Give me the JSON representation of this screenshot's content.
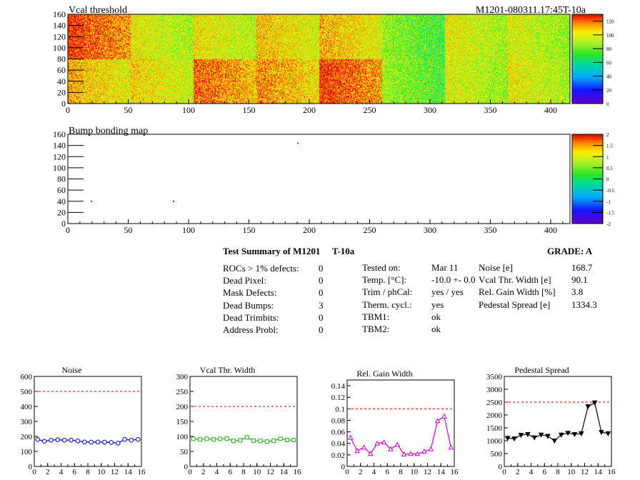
{
  "header": {
    "vcal_title": "Vcal threshold",
    "module_id": "M1201-080311.17:45T-10a",
    "bump_title": "Bump bonding map"
  },
  "summary": {
    "title": "Test Summary of M1201",
    "temp_tag": "T-10a",
    "grade": "GRADE:  A",
    "rows": [
      {
        "label": "ROCs > 1% defects:",
        "value": "0"
      },
      {
        "label": "Dead Pixel:",
        "value": "0"
      },
      {
        "label": "Mask Defects:",
        "value": "0"
      },
      {
        "label": "Dead Bumps:",
        "value": "3"
      },
      {
        "label": "Dead Trimbits:",
        "value": "0"
      },
      {
        "label": "Address Probl:",
        "value": "0"
      }
    ],
    "test_rows": [
      {
        "label": "Tested on:",
        "value": "Mar 11"
      },
      {
        "label": "Temp. [°C]:",
        "value": "-10.0 +- 0.0"
      },
      {
        "label": "Trim / phCal:",
        "value": "yes / yes"
      },
      {
        "label": "Therm. cycl.:",
        "value": "yes"
      },
      {
        "label": "TBM1:",
        "value": "ok"
      },
      {
        "label": "TBM2:",
        "value": "ok"
      }
    ],
    "stat_rows": [
      {
        "label": "Noise [e]",
        "value": "168.7"
      },
      {
        "label": "Vcal Thr. Width [e]",
        "value": "90.1"
      },
      {
        "label": "Rel. Gain Width [%]",
        "value": "3.8"
      },
      {
        "label": "Pedestal Spread [e]",
        "value": "1334.3"
      }
    ]
  },
  "chart_data": [
    {
      "type": "heatmap",
      "title": "Vcal threshold",
      "xlim": [
        0,
        416
      ],
      "ylim": [
        0,
        160
      ],
      "xticks": [
        0,
        50,
        100,
        150,
        200,
        250,
        300,
        350,
        400
      ],
      "yticks": [
        0,
        20,
        40,
        60,
        80,
        100,
        120,
        140,
        160
      ],
      "zlim": [
        0,
        130
      ],
      "zticks": [
        0,
        20,
        40,
        60,
        80,
        100,
        120
      ],
      "roc_grid": {
        "cols": 8,
        "rows": 2
      },
      "roc_mean_top": [
        120,
        95,
        97,
        103,
        105,
        80,
        95,
        92
      ],
      "roc_mean_bottom": [
        105,
        100,
        115,
        110,
        120,
        82,
        93,
        95
      ]
    },
    {
      "type": "heatmap",
      "title": "Bump bonding map",
      "xlim": [
        0,
        416
      ],
      "ylim": [
        0,
        160
      ],
      "xticks": [
        0,
        50,
        100,
        150,
        200,
        250,
        300,
        350,
        400
      ],
      "yticks": [
        0,
        20,
        40,
        60,
        80,
        100,
        120,
        140,
        160
      ],
      "zlim": [
        -2,
        2
      ],
      "zticks": [
        -2,
        -1.5,
        -1,
        -0.5,
        0,
        0.5,
        1,
        1.5,
        2
      ],
      "points": [
        {
          "x": 190,
          "y": 144,
          "z": -1.2
        },
        {
          "x": 19,
          "y": 40,
          "z": -1.2
        },
        {
          "x": 87,
          "y": 40,
          "z": 2
        }
      ]
    },
    {
      "type": "line",
      "title": "Noise",
      "xlim": [
        0,
        16
      ],
      "ylim": [
        0,
        600
      ],
      "xticks": [
        0,
        2,
        4,
        6,
        8,
        10,
        12,
        14,
        16
      ],
      "yticks": [
        0,
        100,
        200,
        300,
        400,
        500,
        600
      ],
      "threshold": 500,
      "color": "#0000cc",
      "marker": "circle",
      "x": [
        0.5,
        1.5,
        2.5,
        3.5,
        4.5,
        5.5,
        6.5,
        7.5,
        8.5,
        9.5,
        10.5,
        11.5,
        12.5,
        13.5,
        14.5,
        15.5
      ],
      "values": [
        180,
        168,
        175,
        178,
        175,
        176,
        170,
        163,
        162,
        163,
        162,
        160,
        155,
        180,
        175,
        180
      ]
    },
    {
      "type": "line",
      "title": "Vcal Thr. Width",
      "xlim": [
        0,
        16
      ],
      "ylim": [
        0,
        300
      ],
      "xticks": [
        0,
        2,
        4,
        6,
        8,
        10,
        12,
        14,
        16
      ],
      "yticks": [
        0,
        50,
        100,
        150,
        200,
        250,
        300
      ],
      "threshold": 200,
      "color": "#22aa22",
      "marker": "square",
      "x": [
        0.5,
        1.5,
        2.5,
        3.5,
        4.5,
        5.5,
        6.5,
        7.5,
        8.5,
        9.5,
        10.5,
        11.5,
        12.5,
        13.5,
        14.5,
        15.5
      ],
      "values": [
        92,
        90,
        92,
        90,
        92,
        93,
        85,
        87,
        97,
        86,
        85,
        83,
        86,
        92,
        88,
        88
      ]
    },
    {
      "type": "line",
      "title": "Rel. Gain Width",
      "xlim": [
        0,
        16
      ],
      "ylim": [
        0,
        0.15
      ],
      "xticks": [
        0,
        2,
        4,
        6,
        8,
        10,
        12,
        14,
        16
      ],
      "yticks": [
        0,
        0.02,
        0.04,
        0.06,
        0.08,
        0.1,
        0.12,
        0.14
      ],
      "threshold": 0.1,
      "color": "#cc00cc",
      "marker": "triangle",
      "x": [
        0.5,
        1.5,
        2.5,
        3.5,
        4.5,
        5.5,
        6.5,
        7.5,
        8.5,
        9.5,
        10.5,
        11.5,
        12.5,
        13.5,
        14.5,
        15.5
      ],
      "values": [
        0.05,
        0.027,
        0.033,
        0.022,
        0.04,
        0.042,
        0.03,
        0.038,
        0.021,
        0.022,
        0.022,
        0.026,
        0.03,
        0.079,
        0.087,
        0.033
      ]
    },
    {
      "type": "line",
      "title": "Pedestal Spread",
      "xlim": [
        0,
        16
      ],
      "ylim": [
        0,
        3500
      ],
      "xticks": [
        0,
        2,
        4,
        6,
        8,
        10,
        12,
        14,
        16
      ],
      "yticks": [
        0,
        500,
        1000,
        1500,
        2000,
        2500,
        3000,
        3500
      ],
      "threshold": 2500,
      "color": "#000000",
      "marker": "invtriangle",
      "x": [
        0.5,
        1.5,
        2.5,
        3.5,
        4.5,
        5.5,
        6.5,
        7.5,
        8.5,
        9.5,
        10.5,
        11.5,
        12.5,
        13.5,
        14.5,
        15.5
      ],
      "values": [
        1100,
        1080,
        1220,
        1250,
        1120,
        1230,
        1180,
        1000,
        1230,
        1300,
        1250,
        1280,
        2330,
        2480,
        1330,
        1280
      ]
    }
  ],
  "colors": {
    "threshold_line": "#cc0000",
    "frame": "#000000"
  }
}
